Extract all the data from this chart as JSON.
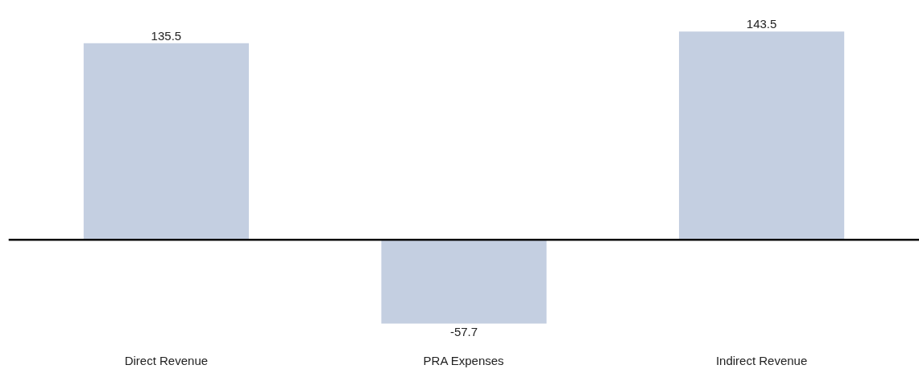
{
  "chart_data": {
    "type": "bar",
    "categories": [
      "Direct Revenue",
      "PRA Expenses",
      "Indirect Revenue"
    ],
    "values": [
      135.5,
      -57.7,
      143.5
    ],
    "color": "#c4cfe1",
    "data_labels": true,
    "tick_labels": "x",
    "ref_lines": [
      {
        "axis": "y",
        "value": 0,
        "color": "#000000"
      }
    ]
  }
}
